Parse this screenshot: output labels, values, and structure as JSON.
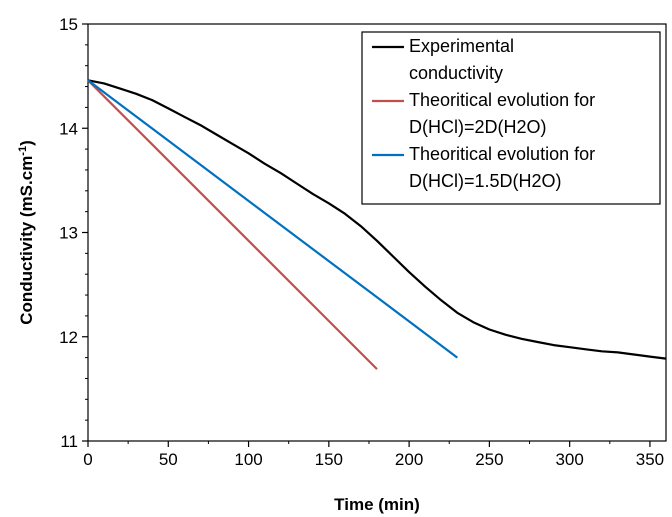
{
  "chart_data": {
    "type": "line",
    "xlabel": "Time (min)",
    "ylabel_main": "Conductivity (mS.cm",
    "ylabel_sup": "-1",
    "ylabel_tail": ")",
    "xlim": [
      0,
      360
    ],
    "ylim": [
      11,
      15
    ],
    "xticks": [
      "0",
      "50",
      "100",
      "150",
      "200",
      "250",
      "300",
      "350"
    ],
    "yticks": [
      "11",
      "12",
      "13",
      "14",
      "15"
    ],
    "grid": false,
    "legend_position": "top-right",
    "series": [
      {
        "name_lines": [
          "Experimental",
          "conductivity"
        ],
        "color": "#000000",
        "x": [
          0,
          10,
          20,
          30,
          40,
          50,
          60,
          70,
          80,
          90,
          100,
          110,
          120,
          130,
          140,
          150,
          160,
          170,
          180,
          190,
          200,
          210,
          220,
          230,
          240,
          250,
          260,
          270,
          280,
          290,
          300,
          310,
          320,
          330,
          340,
          350,
          360
        ],
        "y": [
          14.46,
          14.43,
          14.38,
          14.33,
          14.27,
          14.19,
          14.11,
          14.03,
          13.94,
          13.85,
          13.76,
          13.66,
          13.57,
          13.47,
          13.37,
          13.28,
          13.18,
          13.06,
          12.92,
          12.77,
          12.62,
          12.48,
          12.35,
          12.23,
          12.14,
          12.07,
          12.02,
          11.98,
          11.95,
          11.92,
          11.9,
          11.88,
          11.86,
          11.85,
          11.83,
          11.81,
          11.79
        ]
      },
      {
        "name_lines": [
          "Theoritical evolution for",
          "D(HCl)=2D(H2O)"
        ],
        "color": "#c0504d",
        "x": [
          0,
          180
        ],
        "y": [
          14.46,
          11.69
        ]
      },
      {
        "name_lines": [
          "Theoritical evolution for",
          "D(HCl)=1.5D(H2O)"
        ],
        "color": "#0070c0",
        "x": [
          0,
          230
        ],
        "y": [
          14.46,
          11.8
        ]
      }
    ]
  }
}
